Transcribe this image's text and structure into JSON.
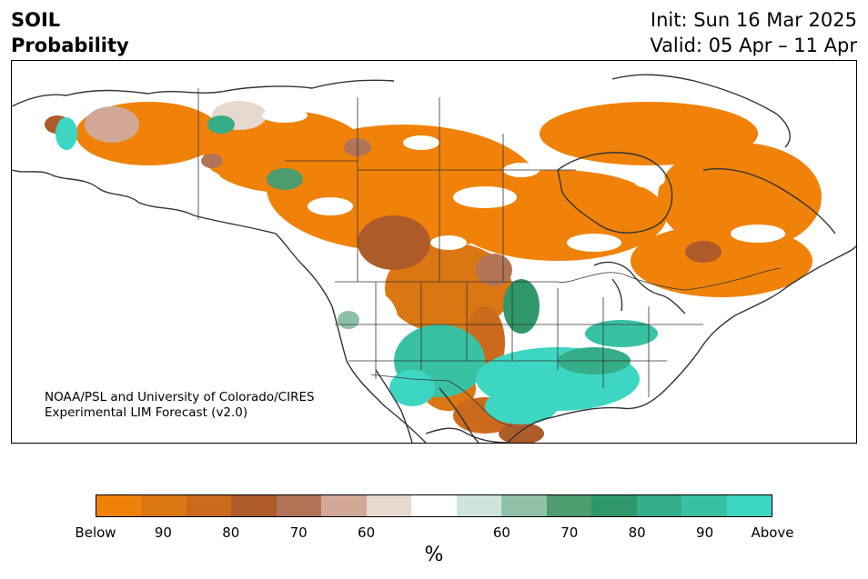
{
  "header": {
    "title_line1": "SOIL",
    "title_line2": "Probability",
    "init": "Init: Sun 16 Mar 2025",
    "valid": "Valid: 05 Apr – 11 Apr"
  },
  "credit": {
    "line1": "NOAA/PSL and University of Colorado/CIRES",
    "line2": "Experimental LIM Forecast (v2.0)"
  },
  "colorbar": {
    "unit": "%",
    "colors": [
      "#f0820a",
      "#db7712",
      "#cb6a1c",
      "#ad5b29",
      "#b17457",
      "#d1a896",
      "#e8d9d0",
      "#ffffff",
      "#cfe5db",
      "#8fc1a8",
      "#4c9c6d",
      "#2f9769",
      "#34ad88",
      "#39c1a4",
      "#3dd6c3"
    ],
    "ticks": [
      "Below",
      "90",
      "80",
      "70",
      "60",
      "60",
      "70",
      "80",
      "90",
      "Above"
    ]
  },
  "map": {
    "region": "North America",
    "below_color": "#f0820a",
    "above_color": "#3dd6c3"
  }
}
